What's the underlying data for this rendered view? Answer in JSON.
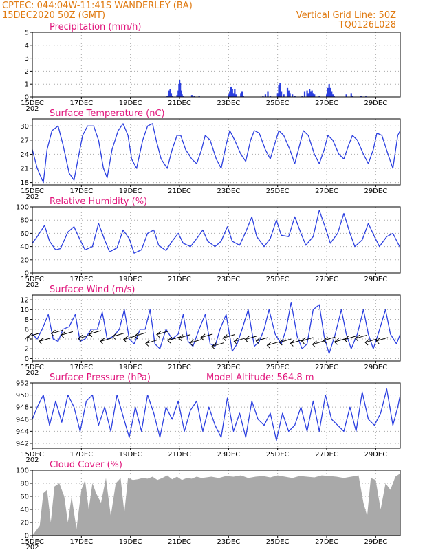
{
  "header": {
    "line1_left": "CPTEC:   044:04W-11:41S   WANDERLEY (BA)",
    "line2_left": "15DEC2020 50Z (GMT)",
    "line1_right": "Vertical Grid Line: 50Z",
    "line2_right": "TQ0126L028"
  },
  "colors": {
    "header": "#e07a10",
    "panel_title": "#e0137a",
    "series": "#2b3fe0",
    "cloud": "#a9a9a9",
    "grid": "#aaaaaa"
  },
  "x_axis": {
    "tick_labels": [
      "15DEC",
      "17DEC",
      "19DEC",
      "21DEC",
      "23DEC",
      "25DEC",
      "27DEC",
      "29DEC"
    ],
    "tick_days": [
      0,
      2,
      4,
      6,
      8,
      10,
      12,
      14
    ],
    "range_days": [
      0,
      15
    ],
    "clipped_label": "202"
  },
  "chart_data": [
    {
      "id": "precip",
      "type": "bar",
      "title": "Precipitation (mm/h)",
      "ylim": [
        0,
        5
      ],
      "yticks": [
        0,
        1,
        2,
        3,
        4,
        5
      ],
      "yticklabels": [
        "0",
        "1",
        "2",
        "3",
        "4",
        "5"
      ],
      "grid": true,
      "bars": [
        [
          5.5,
          0.1
        ],
        [
          5.55,
          0.25
        ],
        [
          5.58,
          0.5
        ],
        [
          5.62,
          0.6
        ],
        [
          5.66,
          0.3
        ],
        [
          5.7,
          0.1
        ],
        [
          5.9,
          0.15
        ],
        [
          5.95,
          0.5
        ],
        [
          5.98,
          1.0
        ],
        [
          6.0,
          1.3
        ],
        [
          6.03,
          1.1
        ],
        [
          6.06,
          0.5
        ],
        [
          6.1,
          0.2
        ],
        [
          6.15,
          0.1
        ],
        [
          6.5,
          0.15
        ],
        [
          6.6,
          0.1
        ],
        [
          6.8,
          0.1
        ],
        [
          8.0,
          0.2
        ],
        [
          8.05,
          0.4
        ],
        [
          8.1,
          0.8
        ],
        [
          8.15,
          0.6
        ],
        [
          8.2,
          0.3
        ],
        [
          8.25,
          0.6
        ],
        [
          8.3,
          0.2
        ],
        [
          8.5,
          0.3
        ],
        [
          8.55,
          0.4
        ],
        [
          8.6,
          0.1
        ],
        [
          9.4,
          0.1
        ],
        [
          9.5,
          0.2
        ],
        [
          9.6,
          0.4
        ],
        [
          9.7,
          0.1
        ],
        [
          10.0,
          0.3
        ],
        [
          10.05,
          0.9
        ],
        [
          10.1,
          1.1
        ],
        [
          10.15,
          0.4
        ],
        [
          10.25,
          0.2
        ],
        [
          10.4,
          0.7
        ],
        [
          10.45,
          0.5
        ],
        [
          10.5,
          0.3
        ],
        [
          10.6,
          0.2
        ],
        [
          10.7,
          0.1
        ],
        [
          11.0,
          0.1
        ],
        [
          11.1,
          0.4
        ],
        [
          11.2,
          0.5
        ],
        [
          11.25,
          0.3
        ],
        [
          11.3,
          0.6
        ],
        [
          11.35,
          0.4
        ],
        [
          11.4,
          0.5
        ],
        [
          11.45,
          0.3
        ],
        [
          11.5,
          0.2
        ],
        [
          11.7,
          0.1
        ],
        [
          12.0,
          0.2
        ],
        [
          12.05,
          0.7
        ],
        [
          12.1,
          1.0
        ],
        [
          12.15,
          0.7
        ],
        [
          12.2,
          0.4
        ],
        [
          12.25,
          0.2
        ],
        [
          12.3,
          0.1
        ],
        [
          12.8,
          0.2
        ],
        [
          13.0,
          0.3
        ],
        [
          13.05,
          0.1
        ],
        [
          13.4,
          0.1
        ],
        [
          13.6,
          0.05
        ]
      ]
    },
    {
      "id": "temp",
      "type": "line",
      "title": "Surface Temperature (nC)",
      "ylim": [
        17.5,
        31.5
      ],
      "yticks": [
        18,
        21,
        24,
        27,
        30
      ],
      "yticklabels": [
        "18",
        "21",
        "24",
        "27",
        "30"
      ],
      "grid": true,
      "series": [
        {
          "x": [
            0,
            0.2,
            0.45,
            0.6,
            0.8,
            1.05,
            1.25,
            1.5,
            1.7,
            1.9,
            2.05,
            2.25,
            2.5,
            2.7,
            2.9,
            3.05,
            3.25,
            3.5,
            3.7,
            3.9,
            4.05,
            4.25,
            4.5,
            4.7,
            4.9,
            5.05,
            5.25,
            5.5,
            5.7,
            5.9,
            6.05,
            6.25,
            6.5,
            6.7,
            6.9,
            7.05,
            7.25,
            7.5,
            7.7,
            7.9,
            8.05,
            8.25,
            8.5,
            8.7,
            8.9,
            9.05,
            9.25,
            9.5,
            9.7,
            9.9,
            10.05,
            10.25,
            10.5,
            10.7,
            10.9,
            11.05,
            11.25,
            11.5,
            11.7,
            11.9,
            12.05,
            12.25,
            12.5,
            12.7,
            12.9,
            13.05,
            13.25,
            13.5,
            13.7,
            13.9,
            14.05,
            14.25,
            14.5,
            14.7,
            14.9,
            15
          ],
          "y": [
            25,
            21,
            18,
            25,
            29,
            30,
            26,
            20,
            18.5,
            24,
            28,
            30,
            30,
            27,
            21,
            19,
            25,
            29,
            30.5,
            28,
            23,
            21,
            27,
            30,
            30.5,
            27,
            23,
            21,
            25,
            28,
            28,
            25,
            23,
            22,
            25,
            28,
            27,
            23,
            21,
            26,
            29,
            27,
            24,
            22.5,
            27,
            29,
            28.5,
            25,
            23,
            26.5,
            29,
            28,
            25,
            22,
            26,
            29,
            28,
            24,
            22,
            25,
            28,
            27,
            24,
            23,
            26,
            28,
            27,
            24,
            22,
            25,
            28.5,
            28,
            24,
            21,
            28,
            29
          ]
        }
      ]
    },
    {
      "id": "rh",
      "type": "line",
      "title": "Relative Humidity (%)",
      "ylim": [
        0,
        100
      ],
      "yticks": [
        0,
        20,
        40,
        60,
        80,
        100
      ],
      "yticklabels": [
        "0",
        "20",
        "40",
        "60",
        "80",
        "100"
      ],
      "grid": true,
      "series": [
        {
          "x": [
            0,
            0.2,
            0.5,
            0.7,
            0.95,
            1.15,
            1.45,
            1.7,
            1.95,
            2.15,
            2.45,
            2.7,
            2.95,
            3.15,
            3.45,
            3.7,
            3.95,
            4.15,
            4.45,
            4.7,
            4.95,
            5.15,
            5.45,
            5.7,
            5.95,
            6.15,
            6.45,
            6.7,
            6.95,
            7.15,
            7.45,
            7.7,
            7.95,
            8.15,
            8.45,
            8.7,
            8.95,
            9.15,
            9.45,
            9.7,
            9.95,
            10.15,
            10.45,
            10.7,
            10.95,
            11.15,
            11.45,
            11.7,
            11.95,
            12.15,
            12.45,
            12.7,
            12.95,
            13.15,
            13.45,
            13.7,
            13.95,
            14.15,
            14.45,
            14.7,
            15
          ],
          "y": [
            45,
            55,
            72,
            48,
            35,
            37,
            62,
            70,
            50,
            35,
            40,
            75,
            50,
            32,
            38,
            65,
            52,
            30,
            35,
            60,
            65,
            42,
            34,
            48,
            60,
            45,
            40,
            52,
            65,
            48,
            40,
            48,
            70,
            48,
            42,
            62,
            85,
            55,
            40,
            52,
            80,
            57,
            55,
            85,
            60,
            42,
            55,
            95,
            68,
            45,
            60,
            90,
            60,
            40,
            50,
            75,
            55,
            40,
            55,
            60,
            38
          ]
        }
      ]
    },
    {
      "id": "wind",
      "type": "line",
      "title": "Surface Wind (m/s)",
      "ylim": [
        -0.5,
        13
      ],
      "yticks": [
        0,
        2,
        4,
        6,
        8,
        10,
        12
      ],
      "yticklabels": [
        "0",
        "2",
        "4",
        "6",
        "8",
        "10",
        "12"
      ],
      "grid": true,
      "series": [
        {
          "x": [
            0,
            0.2,
            0.4,
            0.65,
            0.85,
            1.05,
            1.25,
            1.5,
            1.75,
            1.95,
            2.15,
            2.4,
            2.65,
            2.85,
            3.05,
            3.3,
            3.55,
            3.75,
            3.95,
            4.15,
            4.4,
            4.6,
            4.8,
            5.0,
            5.2,
            5.45,
            5.7,
            5.95,
            6.15,
            6.35,
            6.55,
            6.8,
            7.05,
            7.25,
            7.45,
            7.65,
            7.9,
            8.15,
            8.35,
            8.55,
            8.8,
            9.05,
            9.25,
            9.45,
            9.65,
            9.9,
            10.15,
            10.35,
            10.55,
            10.8,
            11.0,
            11.2,
            11.45,
            11.7,
            11.9,
            12.1,
            12.35,
            12.6,
            12.8,
            13.0,
            13.25,
            13.5,
            13.7,
            13.9,
            14.1,
            14.4,
            14.6,
            14.85,
            15
          ],
          "y": [
            5,
            4,
            6,
            9,
            4,
            3.5,
            6,
            6.5,
            9,
            3.5,
            4,
            6,
            6,
            9.5,
            4,
            4.5,
            6,
            10,
            4,
            3,
            6,
            6,
            10,
            3,
            2,
            6,
            4,
            5,
            9,
            3.5,
            2.5,
            6,
            9,
            3,
            2.5,
            6,
            9,
            1.5,
            3,
            6,
            10,
            2.5,
            3.5,
            6,
            10,
            5,
            3,
            6,
            11.5,
            4.5,
            2,
            3,
            10,
            11,
            4.5,
            1,
            5,
            10,
            5,
            2,
            5,
            10,
            5,
            2,
            5,
            10,
            5,
            3,
            5
          ]
        }
      ],
      "arrows": [
        [
          0.3,
          5.2
        ],
        [
          0.75,
          4.2
        ],
        [
          1.25,
          5.8
        ],
        [
          1.65,
          5.5
        ],
        [
          2.35,
          4.8
        ],
        [
          2.8,
          5.7
        ],
        [
          3.25,
          4.2
        ],
        [
          3.75,
          5.2
        ],
        [
          4.2,
          4.6
        ],
        [
          4.65,
          5.3
        ],
        [
          5.1,
          3.8
        ],
        [
          5.55,
          5.6
        ],
        [
          6.0,
          4.4
        ],
        [
          6.45,
          4.9
        ],
        [
          6.9,
          3.9
        ],
        [
          7.35,
          5.0
        ],
        [
          7.8,
          3.2
        ],
        [
          8.25,
          4.9
        ],
        [
          8.7,
          4.2
        ],
        [
          9.15,
          4.6
        ],
        [
          9.6,
          4.3
        ],
        [
          10.05,
          3.4
        ],
        [
          10.55,
          4.0
        ],
        [
          11.0,
          3.8
        ],
        [
          11.45,
          4.3
        ],
        [
          11.9,
          3.6
        ],
        [
          12.35,
          4.4
        ],
        [
          12.8,
          4.1
        ],
        [
          13.2,
          4.6
        ],
        [
          13.65,
          4.8
        ],
        [
          14.05,
          4.0
        ],
        [
          14.5,
          4.3
        ]
      ]
    },
    {
      "id": "pres",
      "type": "line",
      "title": "Surface Pressure (hPa)",
      "annotation": "Model Altitude: 564.8 m",
      "ylim": [
        941.2,
        952
      ],
      "yticks": [
        942,
        944,
        946,
        948,
        950,
        952
      ],
      "yticklabels": [
        "942",
        "944",
        "946",
        "948",
        "950",
        "952"
      ],
      "grid": true,
      "series": [
        {
          "x": [
            0,
            0.2,
            0.45,
            0.7,
            0.95,
            1.2,
            1.45,
            1.7,
            1.95,
            2.2,
            2.45,
            2.7,
            2.95,
            3.2,
            3.45,
            3.7,
            3.95,
            4.2,
            4.45,
            4.7,
            4.95,
            5.2,
            5.45,
            5.7,
            5.95,
            6.2,
            6.45,
            6.7,
            6.95,
            7.2,
            7.45,
            7.7,
            7.95,
            8.2,
            8.45,
            8.7,
            8.95,
            9.2,
            9.45,
            9.7,
            9.95,
            10.2,
            10.45,
            10.7,
            10.95,
            11.2,
            11.45,
            11.7,
            11.95,
            12.2,
            12.45,
            12.7,
            12.95,
            13.2,
            13.45,
            13.7,
            13.95,
            14.2,
            14.45,
            14.7,
            14.9,
            15
          ],
          "y": [
            946,
            948,
            950,
            945,
            949,
            945.5,
            950,
            948,
            944,
            949,
            950,
            945,
            948,
            944,
            950,
            946.5,
            943,
            948,
            944,
            950,
            947,
            943,
            948,
            946,
            949,
            944,
            947.5,
            949,
            944,
            948,
            945,
            943,
            949.5,
            944,
            947,
            943,
            949,
            946,
            945,
            947,
            942.5,
            947,
            944,
            945,
            948,
            944,
            949,
            944,
            950,
            946,
            945,
            944,
            948,
            944,
            950.5,
            946,
            945,
            947,
            951,
            945,
            948,
            950
          ]
        }
      ]
    },
    {
      "id": "cloud",
      "type": "area",
      "title": "Cloud Cover (%)",
      "ylim": [
        0,
        100
      ],
      "yticks": [
        0,
        20,
        40,
        60,
        80,
        100
      ],
      "yticklabels": [
        "0",
        "20",
        "40",
        "60",
        "80",
        "100"
      ],
      "grid": true,
      "series": [
        {
          "x": [
            0,
            0.3,
            0.45,
            0.6,
            0.75,
            0.9,
            1.1,
            1.3,
            1.45,
            1.6,
            1.8,
            2.0,
            2.15,
            2.3,
            2.45,
            2.6,
            2.8,
            3.0,
            3.2,
            3.4,
            3.6,
            3.75,
            3.9,
            4.1,
            4.3,
            4.5,
            4.7,
            4.9,
            5.1,
            5.3,
            5.5,
            5.7,
            5.9,
            6.1,
            6.3,
            6.5,
            6.7,
            6.9,
            7.1,
            7.3,
            7.6,
            7.9,
            8.2,
            8.5,
            8.8,
            9.1,
            9.4,
            9.7,
            10.0,
            10.3,
            10.6,
            10.9,
            11.2,
            11.5,
            11.8,
            12.1,
            12.4,
            12.7,
            13.0,
            13.3,
            13.5,
            13.65,
            13.8,
            14.0,
            14.2,
            14.4,
            14.6,
            14.8,
            15
          ],
          "y": [
            0,
            15,
            65,
            70,
            20,
            75,
            80,
            60,
            20,
            60,
            10,
            70,
            85,
            40,
            80,
            65,
            50,
            88,
            30,
            80,
            88,
            35,
            88,
            85,
            86,
            88,
            87,
            90,
            85,
            88,
            92,
            86,
            90,
            85,
            88,
            87,
            90,
            88,
            89,
            90,
            88,
            91,
            90,
            92,
            88,
            90,
            91,
            89,
            92,
            90,
            88,
            91,
            90,
            89,
            92,
            91,
            90,
            88,
            90,
            92,
            50,
            30,
            88,
            85,
            40,
            80,
            70,
            90,
            95
          ]
        }
      ]
    }
  ]
}
